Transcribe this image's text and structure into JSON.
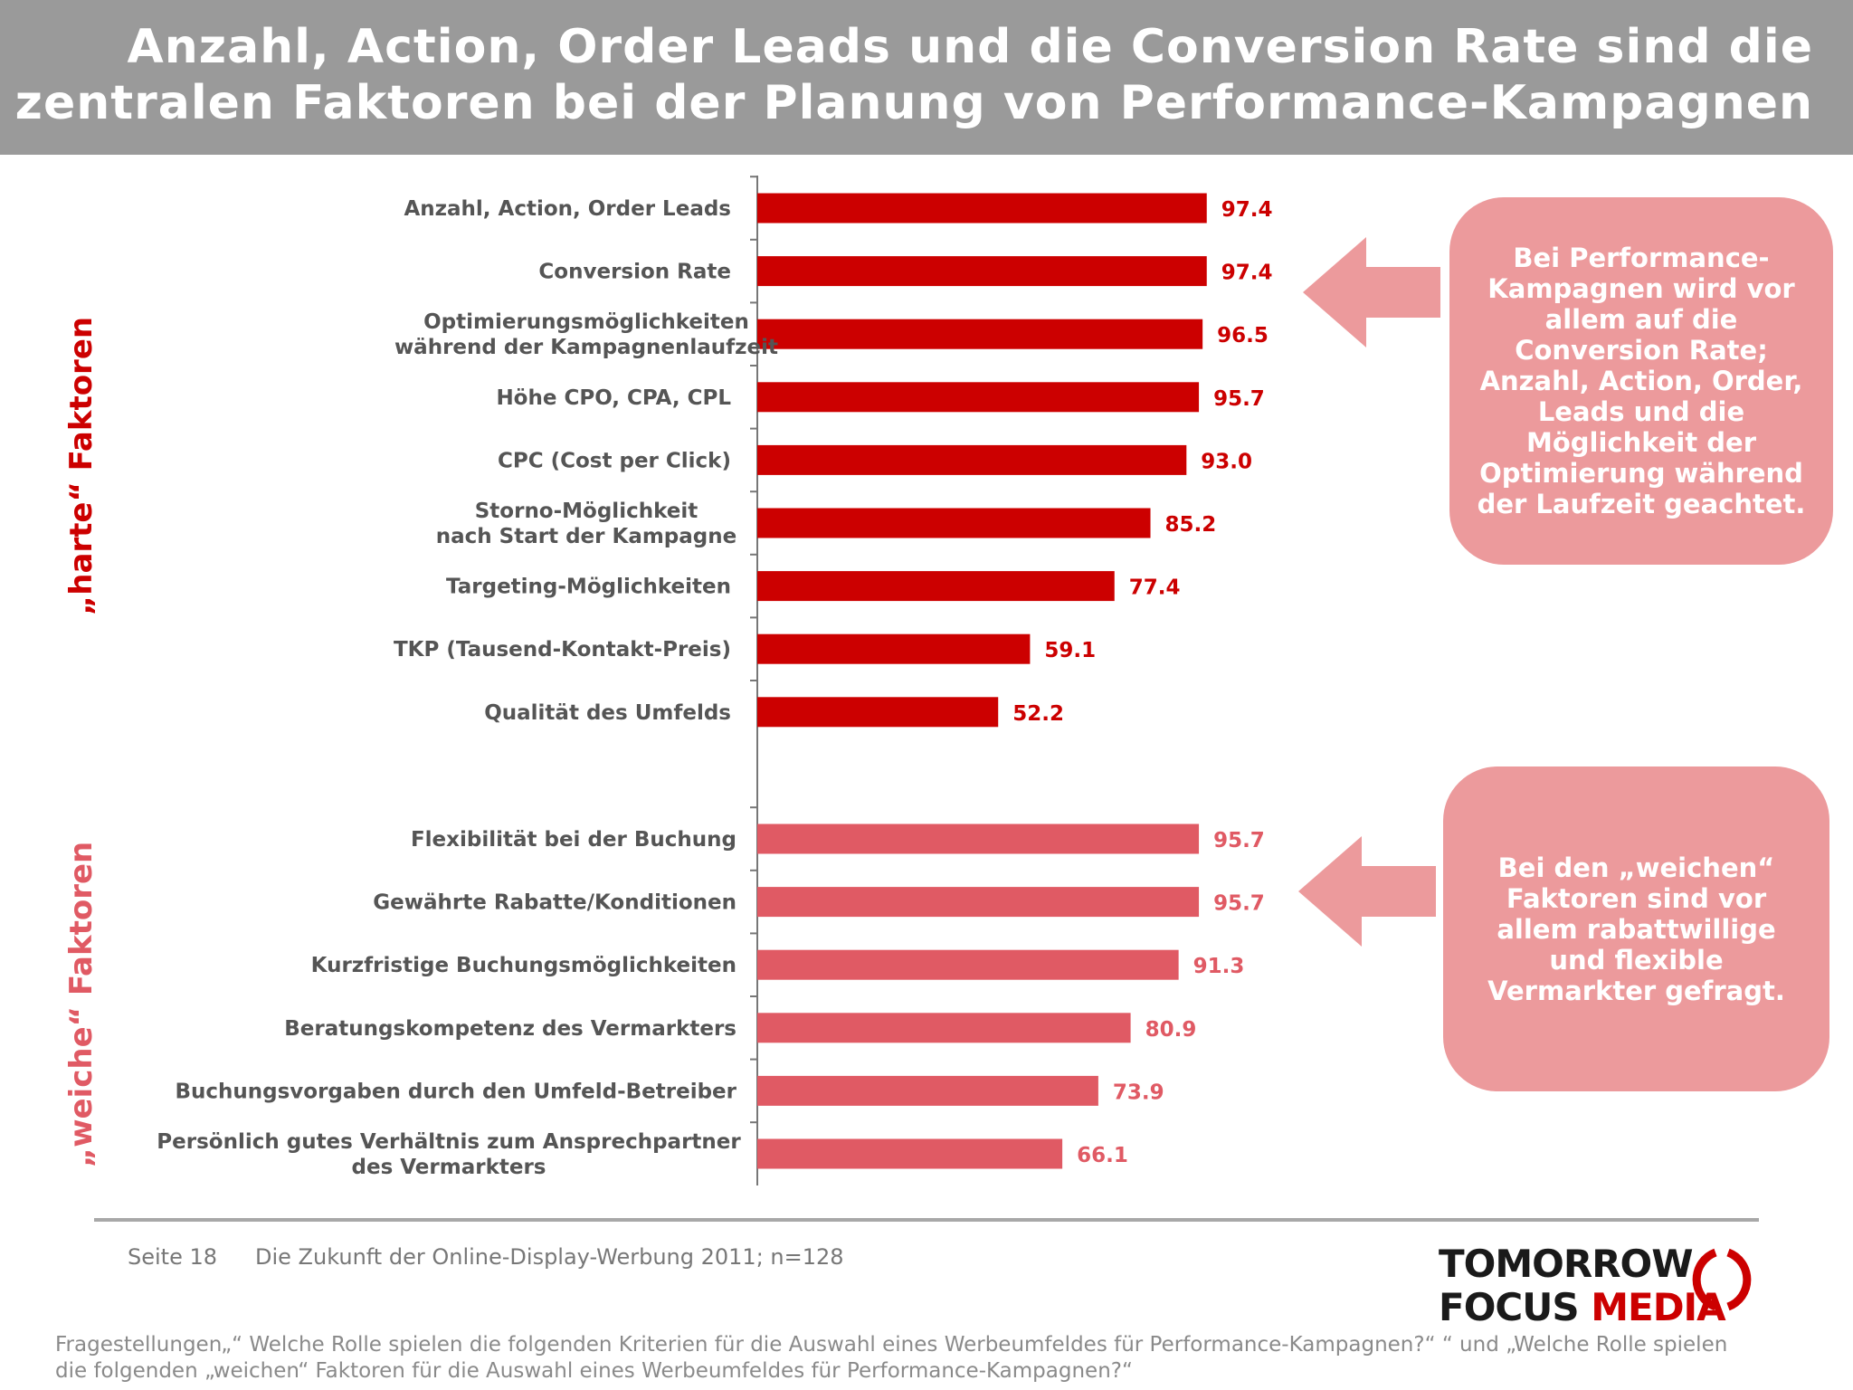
{
  "title": {
    "line1": "Anzahl, Action, Order Leads und die Conversion Rate sind die",
    "line2": "zentralen Faktoren bei der Planung von Performance-Kampagnen"
  },
  "groups": {
    "hard": "„harte“ Faktoren",
    "soft": "„weiche“ Faktoren"
  },
  "callouts": {
    "hard": "Bei Performance-Kampagnen wird vor allem auf die Conversion Rate; Anzahl, Action, Order, Leads und die Möglichkeit der Optimierung während der Laufzeit geachtet.",
    "soft": "Bei den „weichen“ Faktoren sind vor allem rabattwillige und flexible Vermarkter gefragt."
  },
  "footer": {
    "page": "Seite 18",
    "source": "Die Zukunft der Online-Display-Werbung 2011; n=128",
    "footnote": "Fragestellungen„“ Welche Rolle spielen die folgenden Kriterien für die Auswahl eines Werbeumfeldes für Performance-Kampagnen?“ “ und „Welche Rolle spielen die folgenden „weichen“ Faktoren für die Auswahl eines Werbeumfeldes für Performance-Kampagnen?“"
  },
  "logo": {
    "line1": "TOMORROW",
    "line2a": "FOCUS ",
    "line2b": "MEDIA"
  },
  "colors": {
    "hard_bar": "#cc0000",
    "soft_bar": "#e05a64",
    "callout": "#ec9a9c",
    "title_bg": "#9a9a9a"
  },
  "chart_data": {
    "type": "bar",
    "orientation": "horizontal",
    "xlim": [
      0,
      100
    ],
    "series": [
      {
        "group": "„harte“ Faktoren",
        "categories": [
          [
            "Anzahl, Action, Order Leads"
          ],
          [
            "Conversion Rate"
          ],
          [
            "Optimierungsmöglichkeiten",
            "während der Kampagnenlaufzeit"
          ],
          [
            "Höhe CPO, CPA, CPL"
          ],
          [
            "CPC (Cost per Click)"
          ],
          [
            "Storno-Möglichkeit",
            "nach Start der Kampagne"
          ],
          [
            "Targeting-Möglichkeiten"
          ],
          [
            "TKP (Tausend-Kontakt-Preis)"
          ],
          [
            "Qualität des Umfelds"
          ]
        ],
        "values": [
          97.4,
          97.4,
          96.5,
          95.7,
          93.0,
          85.2,
          77.4,
          59.1,
          52.2
        ],
        "labels": [
          "97.4",
          "97.4",
          "96.5",
          "95.7",
          "93.0",
          "85.2",
          "77.4",
          "59.1",
          "52.2"
        ]
      },
      {
        "group": "„weiche“ Faktoren",
        "categories": [
          [
            "Flexibilität bei der Buchung"
          ],
          [
            "Gewährte Rabatte/Konditionen"
          ],
          [
            "Kurzfristige Buchungsmöglichkeiten"
          ],
          [
            "Beratungskompetenz des Vermarkters"
          ],
          [
            "Buchungsvorgaben durch den Umfeld-Betreiber"
          ],
          [
            "Persönlich gutes Verhältnis zum Ansprechpartner",
            "des Vermarkters"
          ]
        ],
        "values": [
          95.7,
          95.7,
          91.3,
          80.9,
          73.9,
          66.1
        ],
        "labels": [
          "95.7",
          "95.7",
          "91.3",
          "80.9",
          "73.9",
          "66.1"
        ]
      }
    ]
  }
}
